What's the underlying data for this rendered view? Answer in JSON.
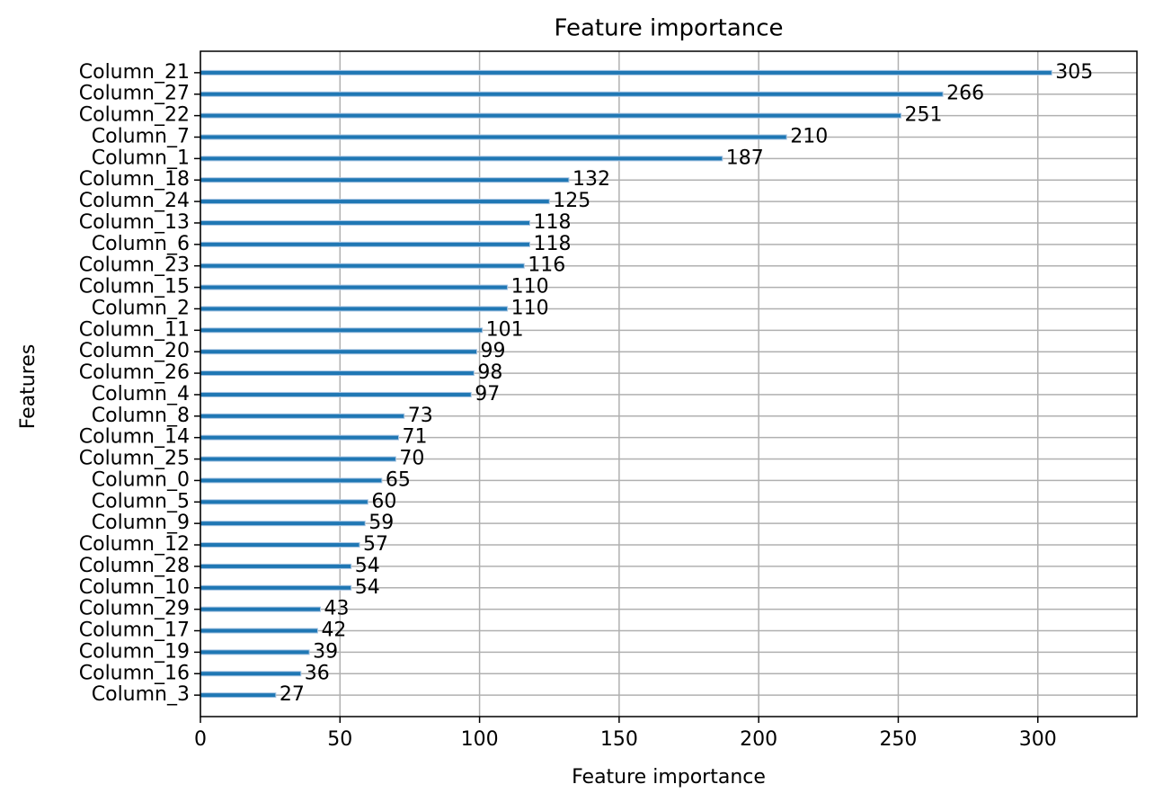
{
  "chart_data": {
    "type": "barh",
    "title": "Feature importance",
    "xlabel": "Feature importance",
    "ylabel": "Features",
    "categories": [
      "Column_21",
      "Column_27",
      "Column_22",
      "Column_7",
      "Column_1",
      "Column_18",
      "Column_24",
      "Column_13",
      "Column_6",
      "Column_23",
      "Column_15",
      "Column_2",
      "Column_11",
      "Column_20",
      "Column_26",
      "Column_4",
      "Column_8",
      "Column_14",
      "Column_25",
      "Column_0",
      "Column_5",
      "Column_9",
      "Column_12",
      "Column_28",
      "Column_10",
      "Column_29",
      "Column_17",
      "Column_19",
      "Column_16",
      "Column_3"
    ],
    "values": [
      305,
      266,
      251,
      210,
      187,
      132,
      125,
      118,
      118,
      116,
      110,
      110,
      101,
      99,
      98,
      97,
      73,
      71,
      70,
      65,
      60,
      59,
      57,
      54,
      54,
      43,
      42,
      39,
      36,
      27
    ],
    "color": "#1f77b4",
    "xlim": [
      0,
      335.5
    ],
    "xticks": [
      0,
      50,
      100,
      150,
      200,
      250,
      300
    ],
    "grid": true
  }
}
